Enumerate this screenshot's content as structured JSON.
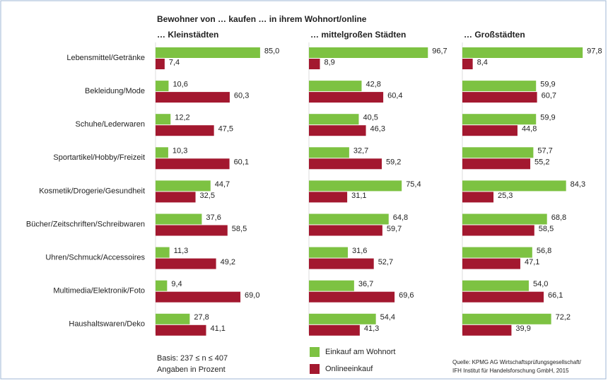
{
  "title": "Bewohner von … kaufen … in ihrem Wohnort/online",
  "notes": [
    "Basis: 237 ≤ n ≤ 407",
    "Angaben in Prozent"
  ],
  "source": [
    "Quelle: KPMG AG Wirtschaftsprüfungsgesellschaft/",
    "IFH Institut für Handelsforschung GmbH, 2015"
  ],
  "chart_data": {
    "type": "bar",
    "orientation": "horizontal",
    "categories": [
      "Lebensmittel/Getränke",
      "Bekleidung/Mode",
      "Schuhe/Lederwaren",
      "Sportartikel/Hobby/Freizeit",
      "Kosmetik/Drogerie/Gesundheit",
      "Bücher/Zeitschriften/Schreibwaren",
      "Uhren/Schmuck/Accessoires",
      "Multimedia/Elektronik/Foto",
      "Haushaltswaren/Deko"
    ],
    "series": [
      {
        "name": "Einkauf am Wohnort",
        "color": "#7dc242"
      },
      {
        "name": "Onlineeinkauf",
        "color": "#a3182f"
      }
    ],
    "xlim": [
      0,
      100
    ],
    "panels": [
      {
        "title": "… Kleinstädten",
        "series": [
          {
            "values": [
              85.0,
              10.6,
              12.2,
              10.3,
              44.7,
              37.6,
              11.3,
              9.4,
              27.8
            ],
            "value_labels": [
              "85,0",
              "10,6",
              "12,2",
              "10,3",
              "44,7",
              "37,6",
              "11,3",
              "9,4",
              "27,8"
            ]
          },
          {
            "values": [
              7.4,
              60.3,
              47.5,
              60.1,
              32.5,
              58.5,
              49.2,
              69.0,
              41.1
            ],
            "value_labels": [
              "7,4",
              "60,3",
              "47,5",
              "60,1",
              "32,5",
              "58,5",
              "49,2",
              "69,0",
              "41,1"
            ]
          }
        ]
      },
      {
        "title": "… mittelgroßen Städten",
        "series": [
          {
            "values": [
              96.7,
              42.8,
              40.5,
              32.7,
              75.4,
              64.8,
              31.6,
              36.7,
              54.4
            ],
            "value_labels": [
              "96,7",
              "42,8",
              "40,5",
              "32,7",
              "75,4",
              "64,8",
              "31,6",
              "36,7",
              "54,4"
            ]
          },
          {
            "values": [
              8.9,
              60.4,
              46.3,
              59.2,
              31.1,
              59.7,
              52.7,
              69.6,
              41.3
            ],
            "value_labels": [
              "8,9",
              "60,4",
              "46,3",
              "59,2",
              "31,1",
              "59,7",
              "52,7",
              "69,6",
              "41,3"
            ]
          }
        ]
      },
      {
        "title": "… Großstädten",
        "series": [
          {
            "values": [
              97.8,
              59.9,
              59.9,
              57.7,
              84.3,
              68.8,
              56.8,
              54.0,
              72.2
            ],
            "value_labels": [
              "97,8",
              "59,9",
              "59,9",
              "57,7",
              "84,3",
              "68,8",
              "56,8",
              "54,0",
              "72,2"
            ]
          },
          {
            "values": [
              8.4,
              60.7,
              44.8,
              55.2,
              25.3,
              58.5,
              47.1,
              66.1,
              39.9
            ],
            "value_labels": [
              "8,4",
              "60,7",
              "44,8",
              "55,2",
              "25,3",
              "58,5",
              "47,1",
              "66,1",
              "39,9"
            ]
          }
        ]
      }
    ]
  }
}
